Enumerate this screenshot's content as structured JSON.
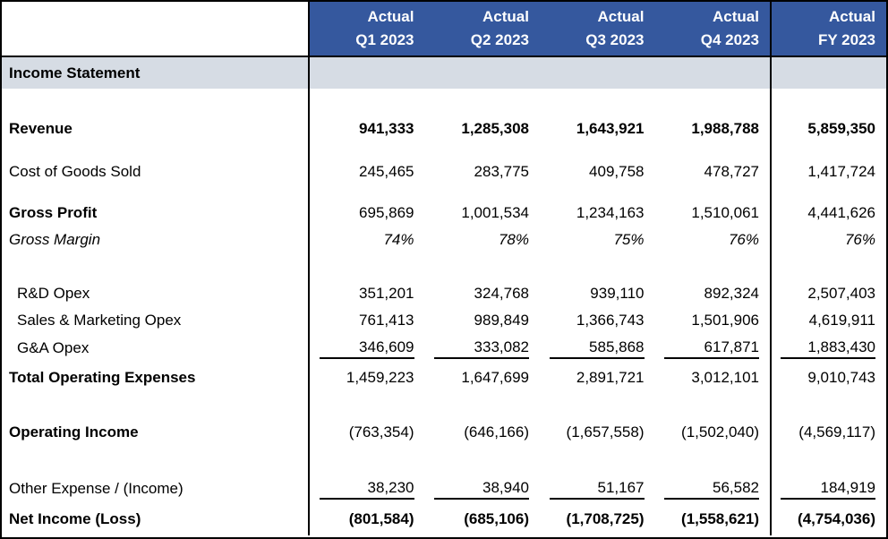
{
  "table": {
    "section_title": "Income Statement",
    "column_headers": [
      {
        "line1": "Actual",
        "line2": "Q1 2023"
      },
      {
        "line1": "Actual",
        "line2": "Q2 2023"
      },
      {
        "line1": "Actual",
        "line2": "Q3 2023"
      },
      {
        "line1": "Actual",
        "line2": "Q4 2023"
      },
      {
        "line1": "Actual",
        "line2": "FY 2023"
      }
    ],
    "rows": [
      {
        "label": "Revenue",
        "bold_label": true,
        "bold_values": true,
        "italic": false,
        "indent": false,
        "underline_values": false,
        "gap_before": 30,
        "height": 30,
        "values": [
          "941,333",
          "1,285,308",
          "1,643,921",
          "1,988,788",
          "5,859,350"
        ]
      },
      {
        "label": "Cost of Goods Sold",
        "bold_label": false,
        "bold_values": false,
        "italic": false,
        "indent": false,
        "underline_values": false,
        "gap_before": 18,
        "height": 30,
        "values": [
          "245,465",
          "283,775",
          "409,758",
          "478,727",
          "1,417,724"
        ]
      },
      {
        "label": "Gross Profit",
        "bold_label": true,
        "bold_values": false,
        "italic": false,
        "indent": false,
        "underline_values": false,
        "gap_before": 16,
        "height": 30,
        "values": [
          "695,869",
          "1,001,534",
          "1,234,163",
          "1,510,061",
          "4,441,626"
        ]
      },
      {
        "label": "Gross Margin",
        "bold_label": false,
        "bold_values": false,
        "italic": true,
        "indent": false,
        "underline_values": false,
        "gap_before": 0,
        "height": 30,
        "values": [
          "74%",
          "78%",
          "75%",
          "76%",
          "76%"
        ]
      },
      {
        "label": "R&D Opex",
        "bold_label": false,
        "bold_values": false,
        "italic": false,
        "indent": true,
        "underline_values": false,
        "gap_before": 30,
        "height": 30,
        "values": [
          "351,201",
          "324,768",
          "939,110",
          "892,324",
          "2,507,403"
        ]
      },
      {
        "label": "Sales & Marketing Opex",
        "bold_label": false,
        "bold_values": false,
        "italic": false,
        "indent": true,
        "underline_values": false,
        "gap_before": 0,
        "height": 30,
        "values": [
          "761,413",
          "989,849",
          "1,366,743",
          "1,501,906",
          "4,619,911"
        ]
      },
      {
        "label": "G&A Opex",
        "bold_label": false,
        "bold_values": false,
        "italic": false,
        "indent": true,
        "underline_values": true,
        "gap_before": 0,
        "height": 32,
        "values": [
          "346,609",
          "333,082",
          "585,868",
          "617,871",
          "1,883,430"
        ]
      },
      {
        "label": "Total Operating Expenses",
        "bold_label": true,
        "bold_values": false,
        "italic": false,
        "indent": false,
        "underline_values": false,
        "gap_before": 0,
        "height": 33,
        "values": [
          "1,459,223",
          "1,647,699",
          "2,891,721",
          "3,012,101",
          "9,010,743"
        ]
      },
      {
        "label": "Operating Income",
        "bold_label": true,
        "bold_values": false,
        "italic": false,
        "indent": false,
        "underline_values": false,
        "gap_before": 30,
        "height": 30,
        "values": [
          "(763,354)",
          "(646,166)",
          "(1,657,558)",
          "(1,502,040)",
          "(4,569,117)"
        ]
      },
      {
        "label": "Other Expense / (Income)",
        "bold_label": false,
        "bold_values": false,
        "italic": false,
        "indent": false,
        "underline_values": true,
        "gap_before": 32,
        "height": 32,
        "values": [
          "38,230",
          "38,940",
          "51,167",
          "56,582",
          "184,919"
        ]
      },
      {
        "label": "Net Income (Loss)",
        "bold_label": true,
        "bold_values": true,
        "italic": false,
        "indent": false,
        "underline_values": false,
        "gap_before": 0,
        "height": 36,
        "values": [
          "(801,584)",
          "(685,106)",
          "(1,708,725)",
          "(1,558,621)",
          "(4,754,036)"
        ]
      }
    ],
    "colors": {
      "header_bg": "#35589E",
      "header_text": "#FFFFFF",
      "section_bg": "#D6DCE4",
      "border": "#000000"
    }
  }
}
